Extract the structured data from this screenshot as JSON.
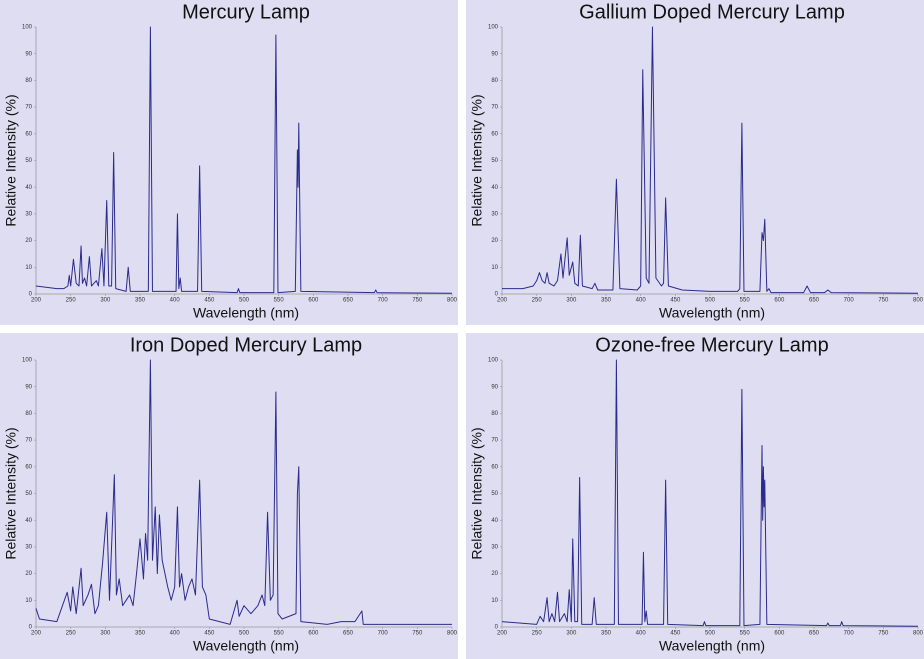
{
  "chart_data": [
    {
      "type": "line",
      "title": "Mercury Lamp",
      "x_label": "Wavelength (nm)",
      "y_label": "Relative Intensity (%)",
      "color": "#2b2b8c",
      "xlim": [
        200,
        800
      ],
      "ylim": [
        0,
        100
      ],
      "xticks": [
        200,
        250,
        300,
        350,
        400,
        450,
        500,
        550,
        600,
        650,
        700,
        750,
        800
      ],
      "yticks": [
        0,
        10,
        20,
        30,
        40,
        50,
        60,
        70,
        80,
        90,
        100
      ],
      "x": [
        200,
        230,
        240,
        246,
        248,
        250,
        254,
        258,
        262,
        265,
        267,
        270,
        273,
        277,
        280,
        287,
        290,
        295,
        298,
        302,
        305,
        309,
        312,
        315,
        330,
        333,
        336,
        362,
        365,
        368,
        402,
        404,
        406,
        408,
        410,
        433,
        436,
        439,
        490,
        492,
        494,
        543,
        546,
        549,
        574,
        577,
        578,
        579,
        582,
        688,
        690,
        692,
        800
      ],
      "values": [
        3,
        2,
        2,
        3,
        7,
        3,
        13,
        4,
        3,
        18,
        4,
        6,
        3,
        14,
        3,
        5,
        3,
        17,
        3,
        35,
        3,
        3,
        53,
        2,
        1,
        10,
        1,
        1,
        100,
        1,
        1,
        30,
        2,
        6,
        1,
        1,
        48,
        1,
        0.5,
        2,
        0.5,
        0.5,
        97,
        0.5,
        1,
        54,
        40,
        64,
        1,
        0.5,
        1.5,
        0.5,
        0.3
      ]
    },
    {
      "type": "line",
      "title": "Gallium Doped Mercury Lamp",
      "x_label": "Wavelength (nm)",
      "y_label": "Relative Intensity (%)",
      "color": "#2b2b8c",
      "xlim": [
        200,
        800
      ],
      "ylim": [
        0,
        100
      ],
      "xticks": [
        200,
        250,
        300,
        350,
        400,
        450,
        500,
        550,
        600,
        650,
        700,
        750,
        800
      ],
      "yticks": [
        0,
        10,
        20,
        30,
        40,
        50,
        60,
        70,
        80,
        90,
        100
      ],
      "x": [
        200,
        230,
        245,
        250,
        254,
        258,
        262,
        265,
        268,
        275,
        280,
        285,
        288,
        294,
        297,
        302,
        305,
        310,
        313,
        316,
        330,
        334,
        338,
        360,
        365,
        370,
        395,
        400,
        403,
        408,
        412,
        417,
        422,
        430,
        433,
        436,
        440,
        460,
        500,
        540,
        543,
        546,
        549,
        572,
        575,
        577,
        579,
        582,
        585,
        588,
        635,
        640,
        645,
        665,
        670,
        675,
        800
      ],
      "values": [
        2,
        2,
        3,
        5,
        8,
        5,
        4,
        8,
        4,
        3,
        5,
        15,
        6,
        21,
        7,
        12,
        4,
        3,
        22,
        3,
        2,
        4,
        1.5,
        1.5,
        43,
        2,
        1.5,
        3,
        84,
        6,
        4,
        100,
        6,
        3,
        4,
        36,
        3,
        1.5,
        1,
        1,
        2,
        64,
        1,
        1,
        23,
        20,
        28,
        1,
        2,
        0.5,
        0.5,
        3,
        0.5,
        0.5,
        1.5,
        0.5,
        0.3
      ]
    },
    {
      "type": "line",
      "title": "Iron Doped Mercury Lamp",
      "x_label": "Wavelength (nm)",
      "y_label": "Relative Intensity (%)",
      "color": "#2b2b8c",
      "xlim": [
        200,
        800
      ],
      "ylim": [
        0,
        100
      ],
      "xticks": [
        200,
        250,
        300,
        350,
        400,
        450,
        500,
        550,
        600,
        650,
        700,
        750,
        800
      ],
      "yticks": [
        0,
        10,
        20,
        30,
        40,
        50,
        60,
        70,
        80,
        90,
        100
      ],
      "x": [
        200,
        205,
        230,
        245,
        250,
        253,
        258,
        265,
        268,
        275,
        280,
        285,
        290,
        296,
        302,
        306,
        313,
        316,
        320,
        325,
        330,
        335,
        340,
        345,
        350,
        355,
        358,
        361,
        365,
        368,
        372,
        375,
        378,
        382,
        386,
        390,
        395,
        400,
        404,
        407,
        410,
        415,
        420,
        425,
        430,
        436,
        440,
        445,
        450,
        480,
        490,
        493,
        500,
        510,
        520,
        526,
        530,
        534,
        538,
        542,
        546,
        549,
        555,
        575,
        577,
        579,
        582,
        620,
        640,
        660,
        670,
        672,
        800
      ],
      "values": [
        7,
        3,
        2,
        13,
        6,
        15,
        5,
        22,
        8,
        12,
        16,
        5,
        8,
        24,
        43,
        10,
        57,
        12,
        18,
        8,
        10,
        12,
        8,
        20,
        33,
        18,
        35,
        25,
        100,
        25,
        45,
        20,
        42,
        25,
        20,
        15,
        10,
        15,
        45,
        15,
        20,
        10,
        15,
        18,
        12,
        55,
        15,
        12,
        3,
        1,
        10,
        4,
        8,
        5,
        8,
        12,
        8,
        43,
        10,
        12,
        88,
        5,
        3,
        5,
        50,
        60,
        2,
        1,
        2,
        2,
        6,
        1,
        1
      ]
    },
    {
      "type": "line",
      "title": "Ozone-free Mercury Lamp",
      "x_label": "Wavelength (nm)",
      "y_label": "Relative Intensity (%)",
      "color": "#2b2b8c",
      "xlim": [
        200,
        800
      ],
      "ylim": [
        0,
        100
      ],
      "xticks": [
        200,
        250,
        300,
        350,
        400,
        450,
        500,
        550,
        600,
        650,
        700,
        750,
        800
      ],
      "yticks": [
        0,
        10,
        20,
        30,
        40,
        50,
        60,
        70,
        80,
        90,
        100
      ],
      "x": [
        200,
        250,
        255,
        260,
        265,
        268,
        272,
        276,
        280,
        283,
        290,
        294,
        297,
        300,
        302,
        305,
        309,
        312,
        315,
        330,
        333,
        336,
        362,
        365,
        368,
        402,
        404,
        406,
        408,
        410,
        433,
        436,
        439,
        490,
        492,
        494,
        543,
        546,
        549,
        572,
        575,
        576,
        577,
        578,
        579,
        582,
        668,
        670,
        672,
        688,
        690,
        692,
        800
      ],
      "values": [
        2,
        1,
        4,
        2,
        11,
        2,
        5,
        2,
        13,
        2,
        5,
        2,
        14,
        2,
        33,
        2,
        2,
        56,
        1,
        1,
        11,
        1,
        1,
        100,
        1,
        1,
        28,
        2,
        6,
        1,
        1,
        55,
        1,
        0.5,
        2,
        0.5,
        0.5,
        89,
        0.5,
        1,
        68,
        40,
        60,
        45,
        55,
        1,
        0.5,
        1.5,
        0.5,
        0.5,
        2,
        0.5,
        0.3
      ]
    }
  ]
}
